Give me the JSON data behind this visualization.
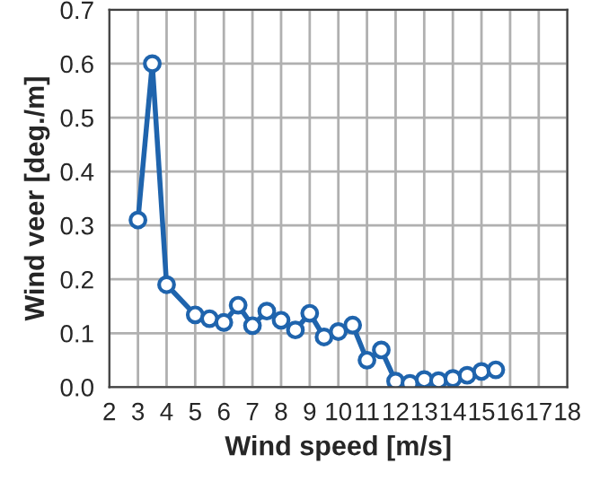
{
  "chart_data": {
    "type": "line",
    "xlabel": "Wind speed [m/s]",
    "ylabel": "Wind veer [deg./m]",
    "x": [
      3,
      3.5,
      4,
      5,
      5.5,
      6,
      6.5,
      7,
      7.5,
      8,
      8.5,
      9,
      9.5,
      10,
      10.5,
      11,
      11.5,
      12,
      12.5,
      13,
      13.5,
      14,
      14.5,
      15,
      15.5
    ],
    "series": [
      {
        "color": "#1f64ad",
        "values": [
          0.31,
          0.6,
          0.19,
          0.134,
          0.127,
          0.12,
          0.152,
          0.114,
          0.141,
          0.124,
          0.106,
          0.137,
          0.093,
          0.103,
          0.115,
          0.05,
          0.069,
          0.011,
          0.007,
          0.014,
          0.012,
          0.016,
          0.022,
          0.029,
          0.032
        ]
      }
    ],
    "xlim": [
      2,
      18
    ],
    "xticks": [
      2,
      3,
      4,
      5,
      6,
      7,
      8,
      9,
      10,
      11,
      12,
      13,
      14,
      15,
      16,
      17,
      18
    ],
    "ylim": [
      0,
      0.7
    ],
    "yticks": [
      {
        "value": 0,
        "label": "0.0"
      },
      {
        "value": 0.1,
        "label": "0.1"
      },
      {
        "value": 0.2,
        "label": "0.2"
      },
      {
        "value": 0.3,
        "label": "0.3"
      },
      {
        "value": 0.4,
        "label": "0.4"
      },
      {
        "value": 0.5,
        "label": "0.5"
      },
      {
        "value": 0.6,
        "label": "0.6"
      },
      {
        "value": 0.7,
        "label": "0.7"
      }
    ],
    "grid": true,
    "marker": "circle",
    "line_style": "solid",
    "legend": false
  }
}
